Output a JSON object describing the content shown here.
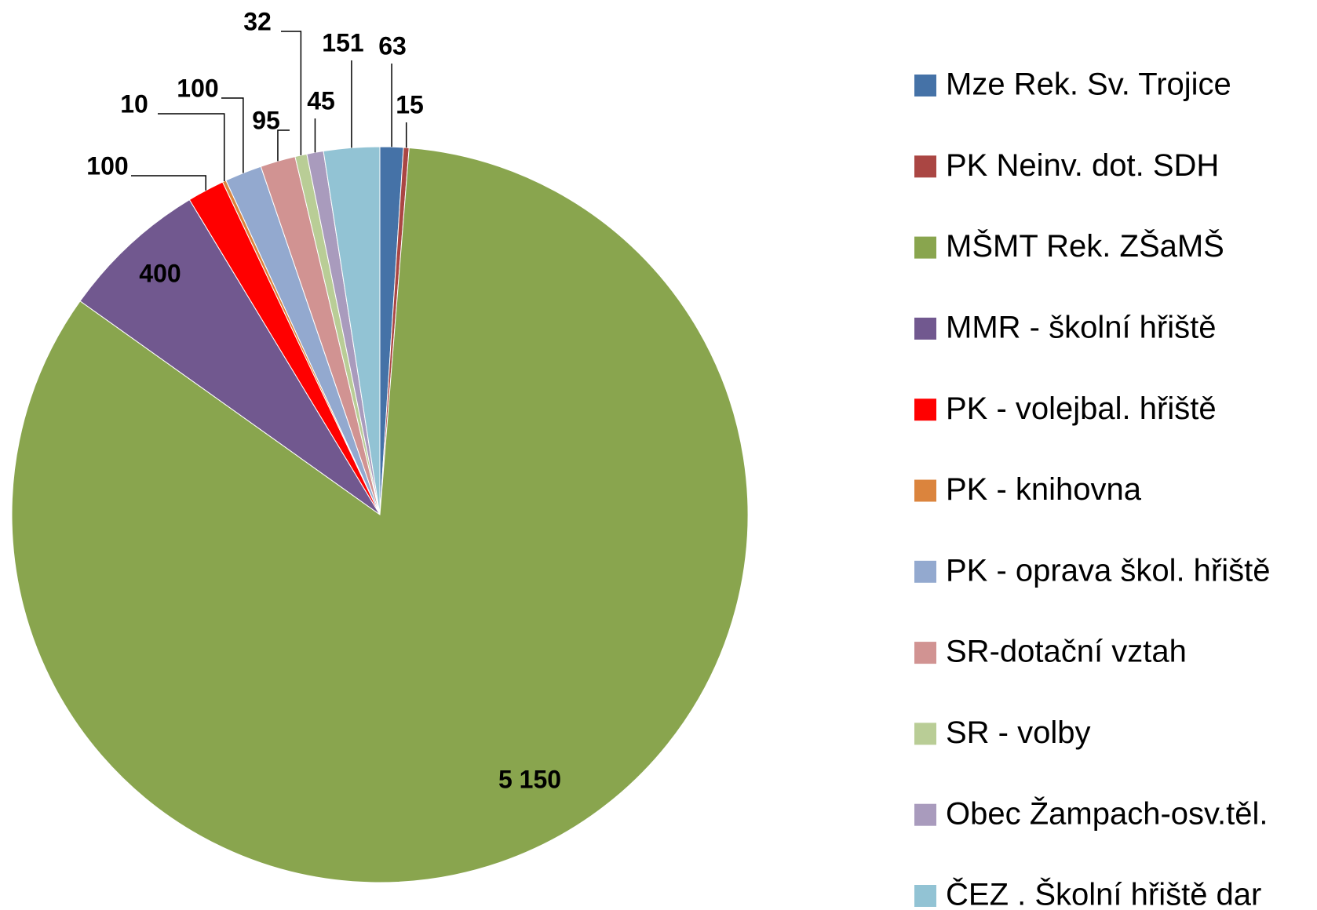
{
  "chart_data": {
    "type": "pie",
    "categories": [
      "Mze Rek. Sv. Trojice",
      "PK Neinv. dot.  SDH",
      "MŠMT Rek. ZŠaMŠ",
      "MMR - školní hřiště",
      "PK - volejbal. hřiště",
      "PK - knihovna",
      "PK - oprava škol. hřiště",
      "SR-dotační vztah",
      "SR - volby",
      "Obec Žampach-osv.těl.",
      "ČEZ . Školní hřiště dar"
    ],
    "values": [
      63,
      15,
      5150,
      400,
      100,
      10,
      100,
      95,
      32,
      45,
      151
    ],
    "value_labels": [
      "63",
      "15",
      "5 150",
      "400",
      "100",
      "10",
      "100",
      "95",
      "32",
      "45",
      "151"
    ],
    "colors": [
      "#4572a7",
      "#aa4643",
      "#89a54e",
      "#71588f",
      "#ff0000",
      "#db843d",
      "#93a9cf",
      "#d19392",
      "#b9cd96",
      "#a99bbd",
      "#92c3d4"
    ],
    "legend": "right"
  }
}
